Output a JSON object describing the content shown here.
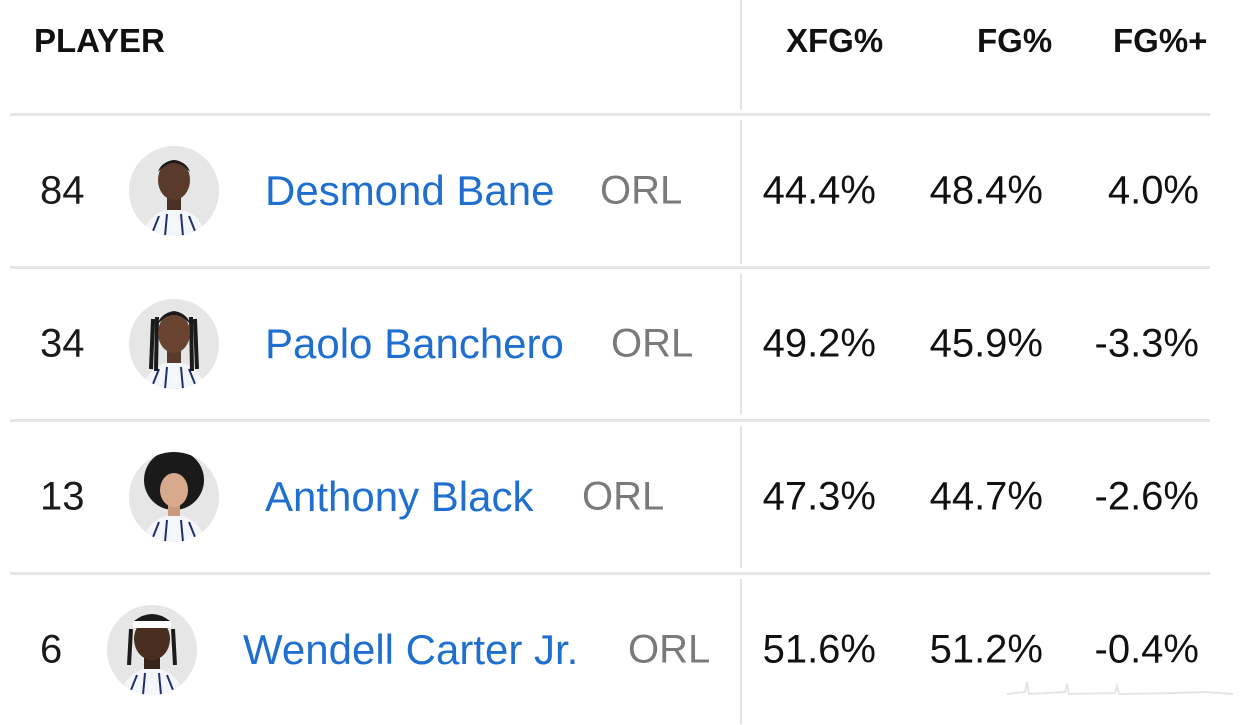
{
  "header": {
    "player_label": "PLAYER",
    "xfg_label": "XFG%",
    "fg_label": "FG%",
    "fgplus_label": "FG%+"
  },
  "rows": [
    {
      "number": "84",
      "name": "Desmond Bane",
      "team": "ORL",
      "xfg": "44.4%",
      "fg": "48.4%",
      "fgplus": "4.0%"
    },
    {
      "number": "34",
      "name": "Paolo Banchero",
      "team": "ORL",
      "xfg": "49.2%",
      "fg": "45.9%",
      "fgplus": "-3.3%"
    },
    {
      "number": "13",
      "name": "Anthony Black",
      "team": "ORL",
      "xfg": "47.3%",
      "fg": "44.7%",
      "fgplus": "-2.6%"
    },
    {
      "number": "6",
      "name": "Wendell Carter Jr.",
      "team": "ORL",
      "xfg": "51.6%",
      "fg": "51.2%",
      "fgplus": "-0.4%"
    }
  ],
  "colors": {
    "link": "#1f6fd1",
    "team": "#7a7a7a",
    "jersey": "#1e2f6b"
  }
}
